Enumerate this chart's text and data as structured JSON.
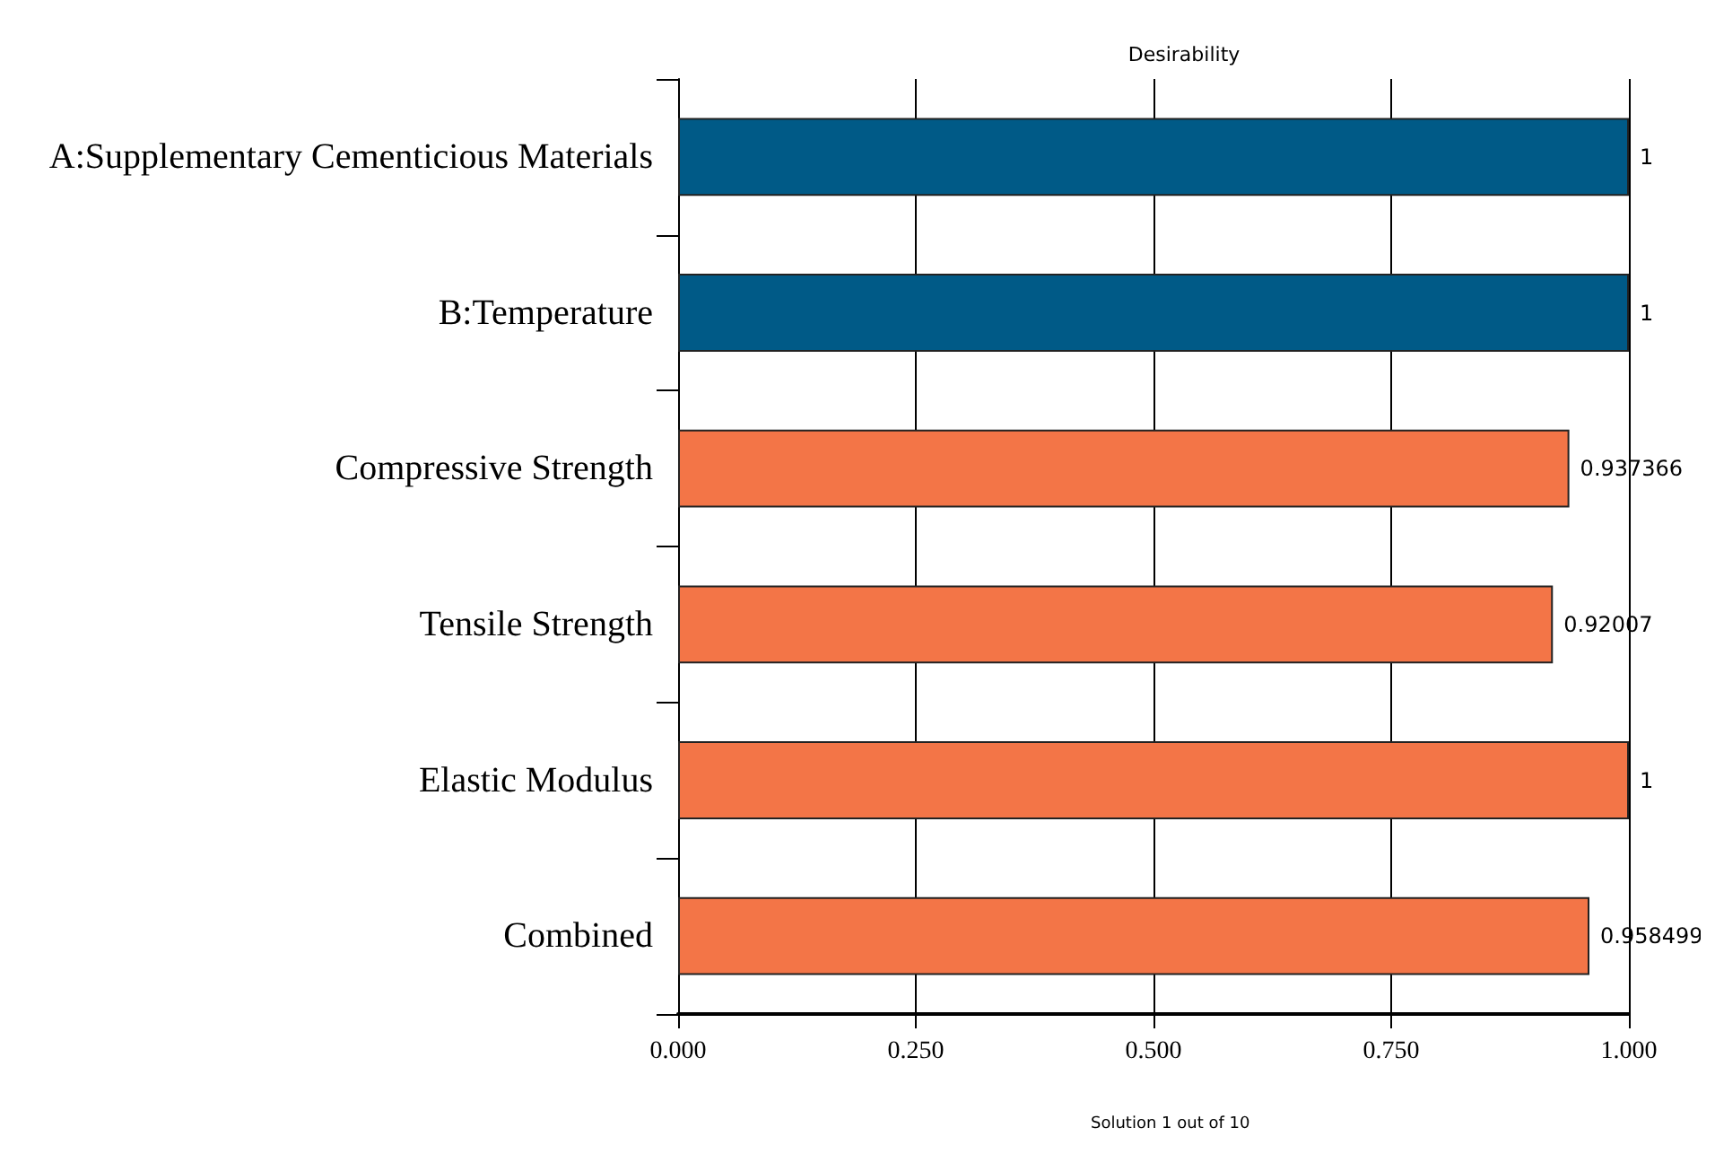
{
  "chart_data": {
    "type": "bar",
    "orientation": "horizontal",
    "title": "Desirability",
    "categories": [
      "A:Supplementary Cementicious Materials",
      "B:Temperature",
      "Compressive Strength",
      "Tensile Strength",
      "Elastic Modulus",
      "Combined"
    ],
    "values": [
      1,
      1,
      0.937366,
      0.92007,
      1,
      0.958499
    ],
    "colors": [
      "#005a87",
      "#005a87",
      "#f37547",
      "#f37547",
      "#f37547",
      "#f37547"
    ],
    "xlim": [
      0,
      1
    ],
    "xticks": [
      {
        "value": 0,
        "label": "0.000"
      },
      {
        "value": 0.25,
        "label": "0.250"
      },
      {
        "value": 0.5,
        "label": "0.500"
      },
      {
        "value": 0.75,
        "label": "0.750"
      },
      {
        "value": 1,
        "label": "1.000"
      }
    ],
    "grid": "x",
    "data_labels": true,
    "annotations": [
      "Solution 1 out of 10"
    ]
  }
}
